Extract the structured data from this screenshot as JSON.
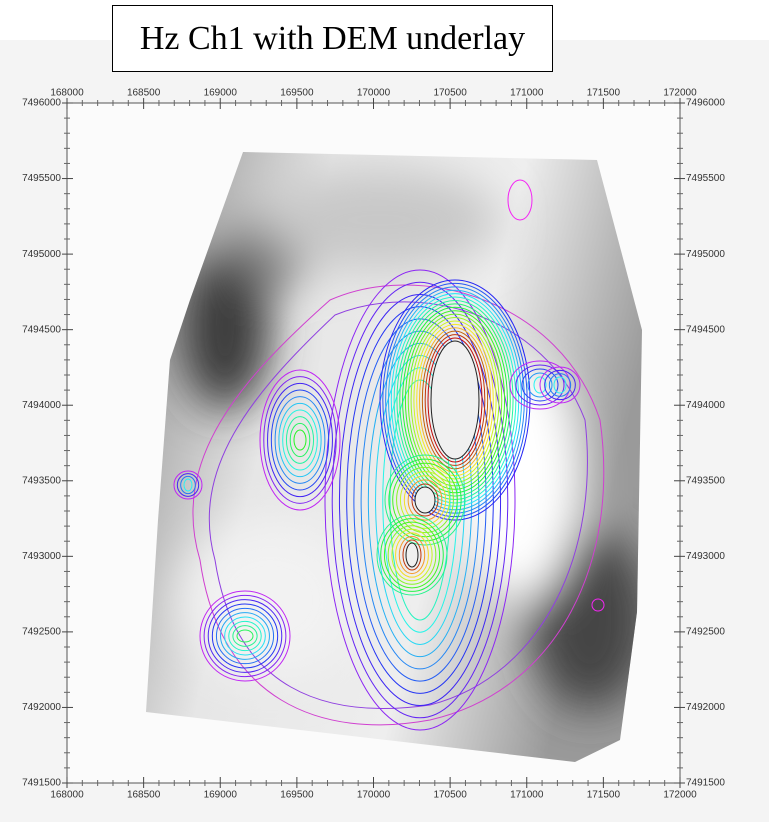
{
  "title": "Hz Ch1 with DEM underlay",
  "x_ticks": [
    168000,
    168500,
    169000,
    169500,
    170000,
    170500,
    171000,
    171500,
    172000
  ],
  "y_ticks": [
    7491500,
    7492000,
    7492500,
    7493000,
    7493500,
    7494000,
    7494500,
    7495000,
    7495500,
    7496000
  ]
}
